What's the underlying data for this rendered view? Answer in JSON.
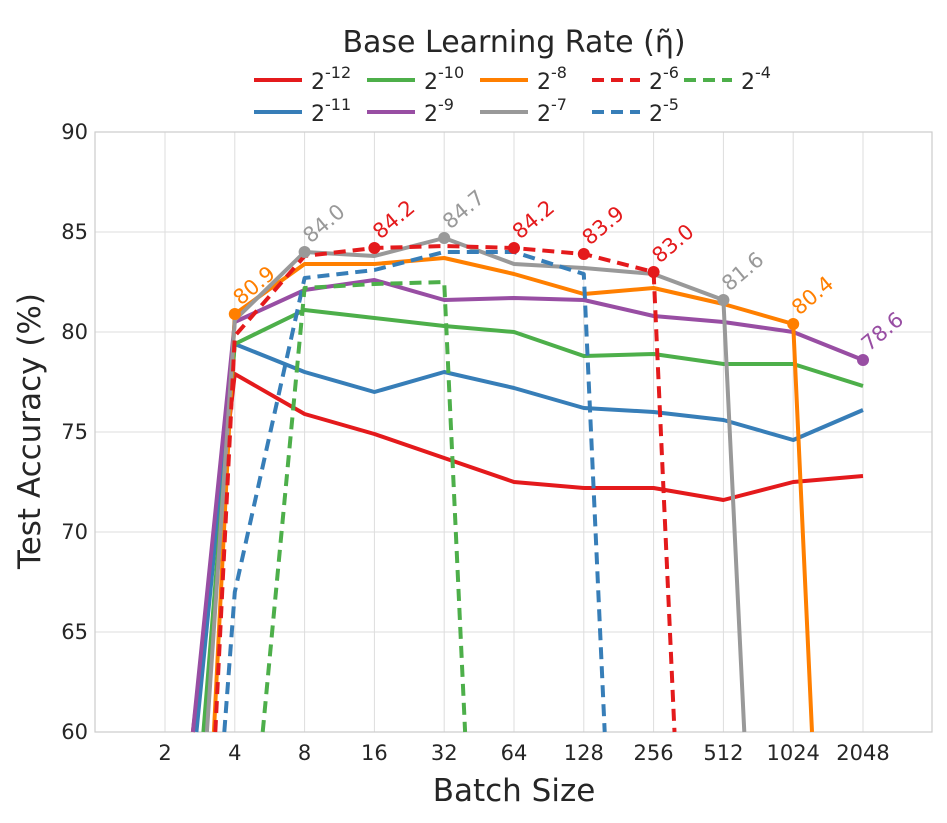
{
  "chart_data": {
    "type": "line",
    "title": "Base Learning Rate (η̃)",
    "xlabel": "Batch Size",
    "ylabel": "Test Accuracy (%)",
    "x_categories": [
      "2",
      "4",
      "8",
      "16",
      "32",
      "64",
      "128",
      "256",
      "512",
      "1024",
      "2048"
    ],
    "ylim": [
      60,
      90
    ],
    "yticks": [
      60,
      65,
      70,
      75,
      80,
      85,
      90
    ],
    "grid": true,
    "legend_position": "top-center",
    "series": [
      {
        "name": "-12",
        "color": "#e41a1c",
        "dash": false,
        "points": [
          [
            0.4,
            60
          ],
          [
            1,
            77.9
          ],
          [
            2,
            75.9
          ],
          [
            3,
            74.9
          ],
          [
            4,
            73.7
          ],
          [
            5,
            72.5
          ],
          [
            6,
            72.2
          ],
          [
            7,
            72.2
          ],
          [
            8,
            71.6
          ],
          [
            9,
            72.5
          ],
          [
            10,
            72.8
          ]
        ]
      },
      {
        "name": "-11",
        "color": "#377eb8",
        "dash": false,
        "points": [
          [
            0.45,
            60
          ],
          [
            1,
            79.4
          ],
          [
            2,
            78.0
          ],
          [
            3,
            77.0
          ],
          [
            4,
            78.0
          ],
          [
            5,
            77.2
          ],
          [
            6,
            76.2
          ],
          [
            7,
            76.0
          ],
          [
            8,
            75.6
          ],
          [
            9,
            74.6
          ],
          [
            10,
            76.1
          ]
        ]
      },
      {
        "name": "-10",
        "color": "#4daf4a",
        "dash": false,
        "points": [
          [
            0.55,
            60
          ],
          [
            1,
            79.4
          ],
          [
            2,
            81.1
          ],
          [
            3,
            80.7
          ],
          [
            4,
            80.3
          ],
          [
            5,
            80.0
          ],
          [
            6,
            78.8
          ],
          [
            7,
            78.9
          ],
          [
            8,
            78.4
          ],
          [
            9,
            78.4
          ],
          [
            10,
            77.3
          ]
        ]
      },
      {
        "name": "-9",
        "color": "#984ea3",
        "dash": false,
        "points": [
          [
            0.4,
            60
          ],
          [
            1,
            80.5
          ],
          [
            2,
            82.1
          ],
          [
            3,
            82.6
          ],
          [
            4,
            81.6
          ],
          [
            5,
            81.7
          ],
          [
            6,
            81.6
          ],
          [
            7,
            80.8
          ],
          [
            8,
            80.5
          ],
          [
            9,
            80.0
          ],
          [
            10,
            78.6
          ]
        ]
      },
      {
        "name": "-8",
        "color": "#ff7f00",
        "dash": false,
        "points": [
          [
            0.7,
            60
          ],
          [
            1,
            80.9
          ],
          [
            2,
            83.4
          ],
          [
            3,
            83.4
          ],
          [
            4,
            83.7
          ],
          [
            5,
            82.9
          ],
          [
            6,
            81.9
          ],
          [
            7,
            82.2
          ],
          [
            8,
            81.4
          ],
          [
            9,
            80.4
          ],
          [
            9.27,
            60
          ]
        ]
      },
      {
        "name": "-7",
        "color": "#999999",
        "dash": false,
        "points": [
          [
            0.6,
            60
          ],
          [
            1,
            80.6
          ],
          [
            2,
            84.0
          ],
          [
            3,
            83.8
          ],
          [
            4,
            84.7
          ],
          [
            5,
            83.4
          ],
          [
            6,
            83.2
          ],
          [
            7,
            82.9
          ],
          [
            8,
            81.6
          ],
          [
            8.3,
            60
          ]
        ]
      },
      {
        "name": "-6",
        "color": "#e41a1c",
        "dash": true,
        "points": [
          [
            0.72,
            60
          ],
          [
            1,
            79.8
          ],
          [
            2,
            83.8
          ],
          [
            3,
            84.2
          ],
          [
            4,
            84.3
          ],
          [
            5,
            84.2
          ],
          [
            6,
            83.9
          ],
          [
            7,
            83.0
          ],
          [
            7.3,
            60
          ]
        ]
      },
      {
        "name": "-5",
        "color": "#377eb8",
        "dash": true,
        "points": [
          [
            0.85,
            60
          ],
          [
            1,
            67.0
          ],
          [
            2,
            82.7
          ],
          [
            3,
            83.1
          ],
          [
            4,
            84.0
          ],
          [
            5,
            84.0
          ],
          [
            6,
            82.9
          ],
          [
            6.3,
            60
          ]
        ]
      },
      {
        "name": "-4",
        "color": "#4daf4a",
        "dash": true,
        "points": [
          [
            1.4,
            60
          ],
          [
            2,
            82.2
          ],
          [
            3,
            82.4
          ],
          [
            4,
            82.5
          ],
          [
            4.3,
            60
          ]
        ]
      }
    ],
    "annotations": [
      {
        "text": "80.9",
        "series": 4,
        "x": 1,
        "y": 80.9,
        "color": "#ff7f00"
      },
      {
        "text": "84.0",
        "series": 5,
        "x": 2,
        "y": 84.0,
        "color": "#999999"
      },
      {
        "text": "84.2",
        "series": 6,
        "x": 3,
        "y": 84.2,
        "color": "#e41a1c"
      },
      {
        "text": "84.7",
        "series": 5,
        "x": 4,
        "y": 84.7,
        "color": "#999999"
      },
      {
        "text": "84.2",
        "series": 6,
        "x": 5,
        "y": 84.2,
        "color": "#e41a1c"
      },
      {
        "text": "83.9",
        "series": 6,
        "x": 6,
        "y": 83.9,
        "color": "#e41a1c"
      },
      {
        "text": "83.0",
        "series": 6,
        "x": 7,
        "y": 83.0,
        "color": "#e41a1c"
      },
      {
        "text": "81.6",
        "series": 5,
        "x": 8,
        "y": 81.6,
        "color": "#999999"
      },
      {
        "text": "80.4",
        "series": 4,
        "x": 9,
        "y": 80.4,
        "color": "#ff7f00"
      },
      {
        "text": "78.6",
        "series": 3,
        "x": 10,
        "y": 78.6,
        "color": "#984ea3"
      }
    ],
    "legend": {
      "base": "2",
      "rows": [
        [
          "-12",
          "-10",
          "-8",
          "-6",
          "-4"
        ],
        [
          "-11",
          "-9",
          "-7",
          "-5"
        ]
      ]
    }
  }
}
